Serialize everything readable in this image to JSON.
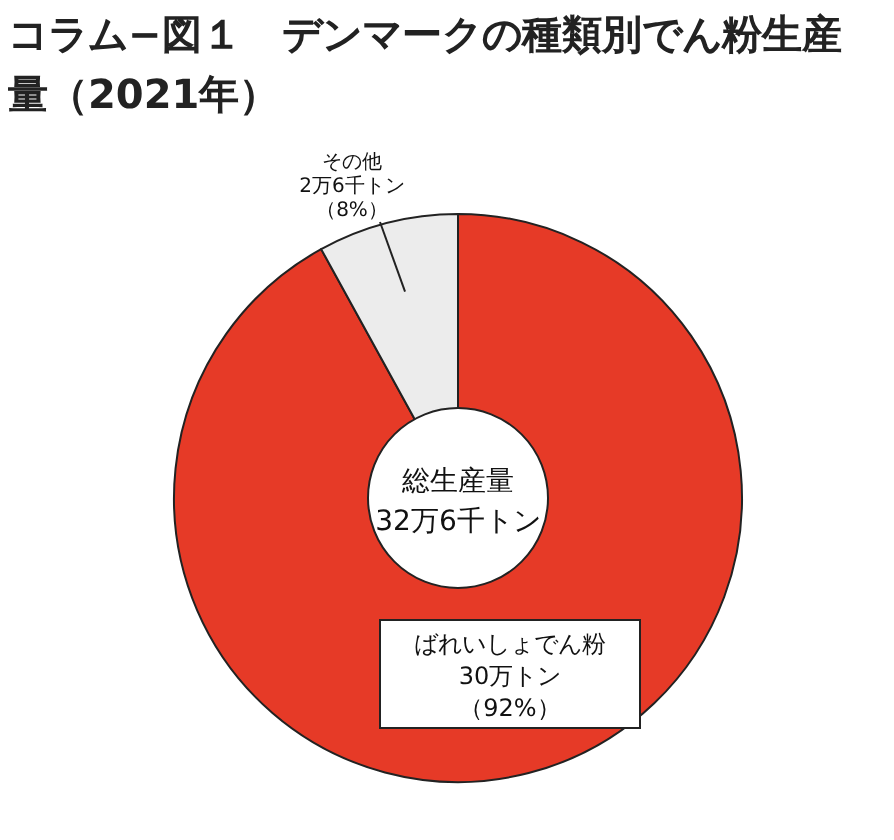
{
  "chart_data": {
    "type": "donut",
    "title": "コラム−図１　デンマークの種類別でん粉生産量（2021年）",
    "categories": [
      "ばれいしょでん粉",
      "その他"
    ],
    "values": [
      92,
      8
    ],
    "value_labels": [
      "（92%）",
      "（8%）"
    ],
    "colors": [
      "#e63a27",
      "#ececec"
    ],
    "annotations": [
      {
        "text": "30万トン",
        "x": "ばれいしょでん粉"
      },
      {
        "text": "2万6千トン",
        "x": "その他"
      },
      "総生産量",
      "32万6千トン"
    ]
  }
}
